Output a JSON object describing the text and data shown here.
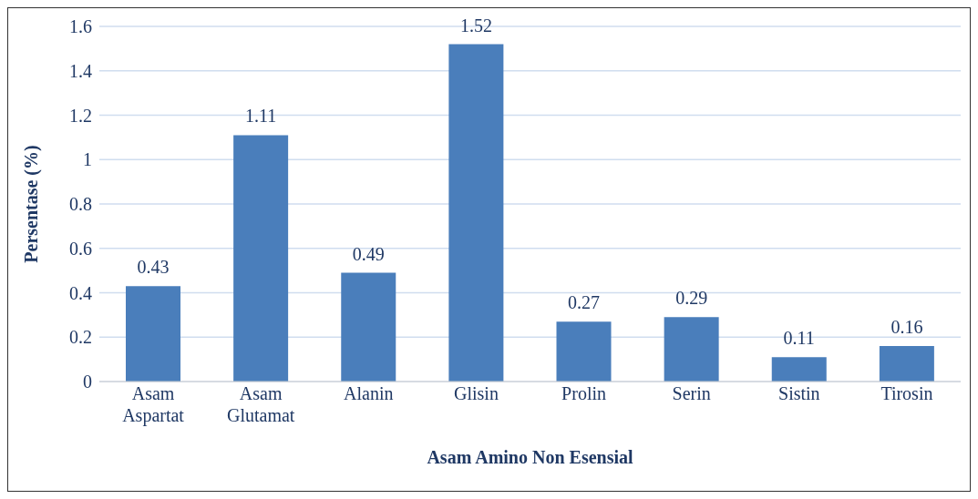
{
  "chart_data": {
    "type": "bar",
    "categories": [
      "Asam Aspartat",
      "Asam Glutamat",
      "Alanin",
      "Glisin",
      "Prolin",
      "Serin",
      "Sistin",
      "Tirosin"
    ],
    "values": [
      0.43,
      1.11,
      0.49,
      1.52,
      0.27,
      0.29,
      0.11,
      0.16
    ],
    "color": "#4a7ebb",
    "xlabel": "Asam Amino Non Esensial",
    "ylabel": "Persentase (%)",
    "ylim": [
      0,
      1.6
    ],
    "yticks": [
      0,
      0.2,
      0.4,
      0.6,
      0.8,
      1,
      1.2,
      1.4,
      1.6
    ],
    "grid": "y",
    "data_labels": true
  }
}
